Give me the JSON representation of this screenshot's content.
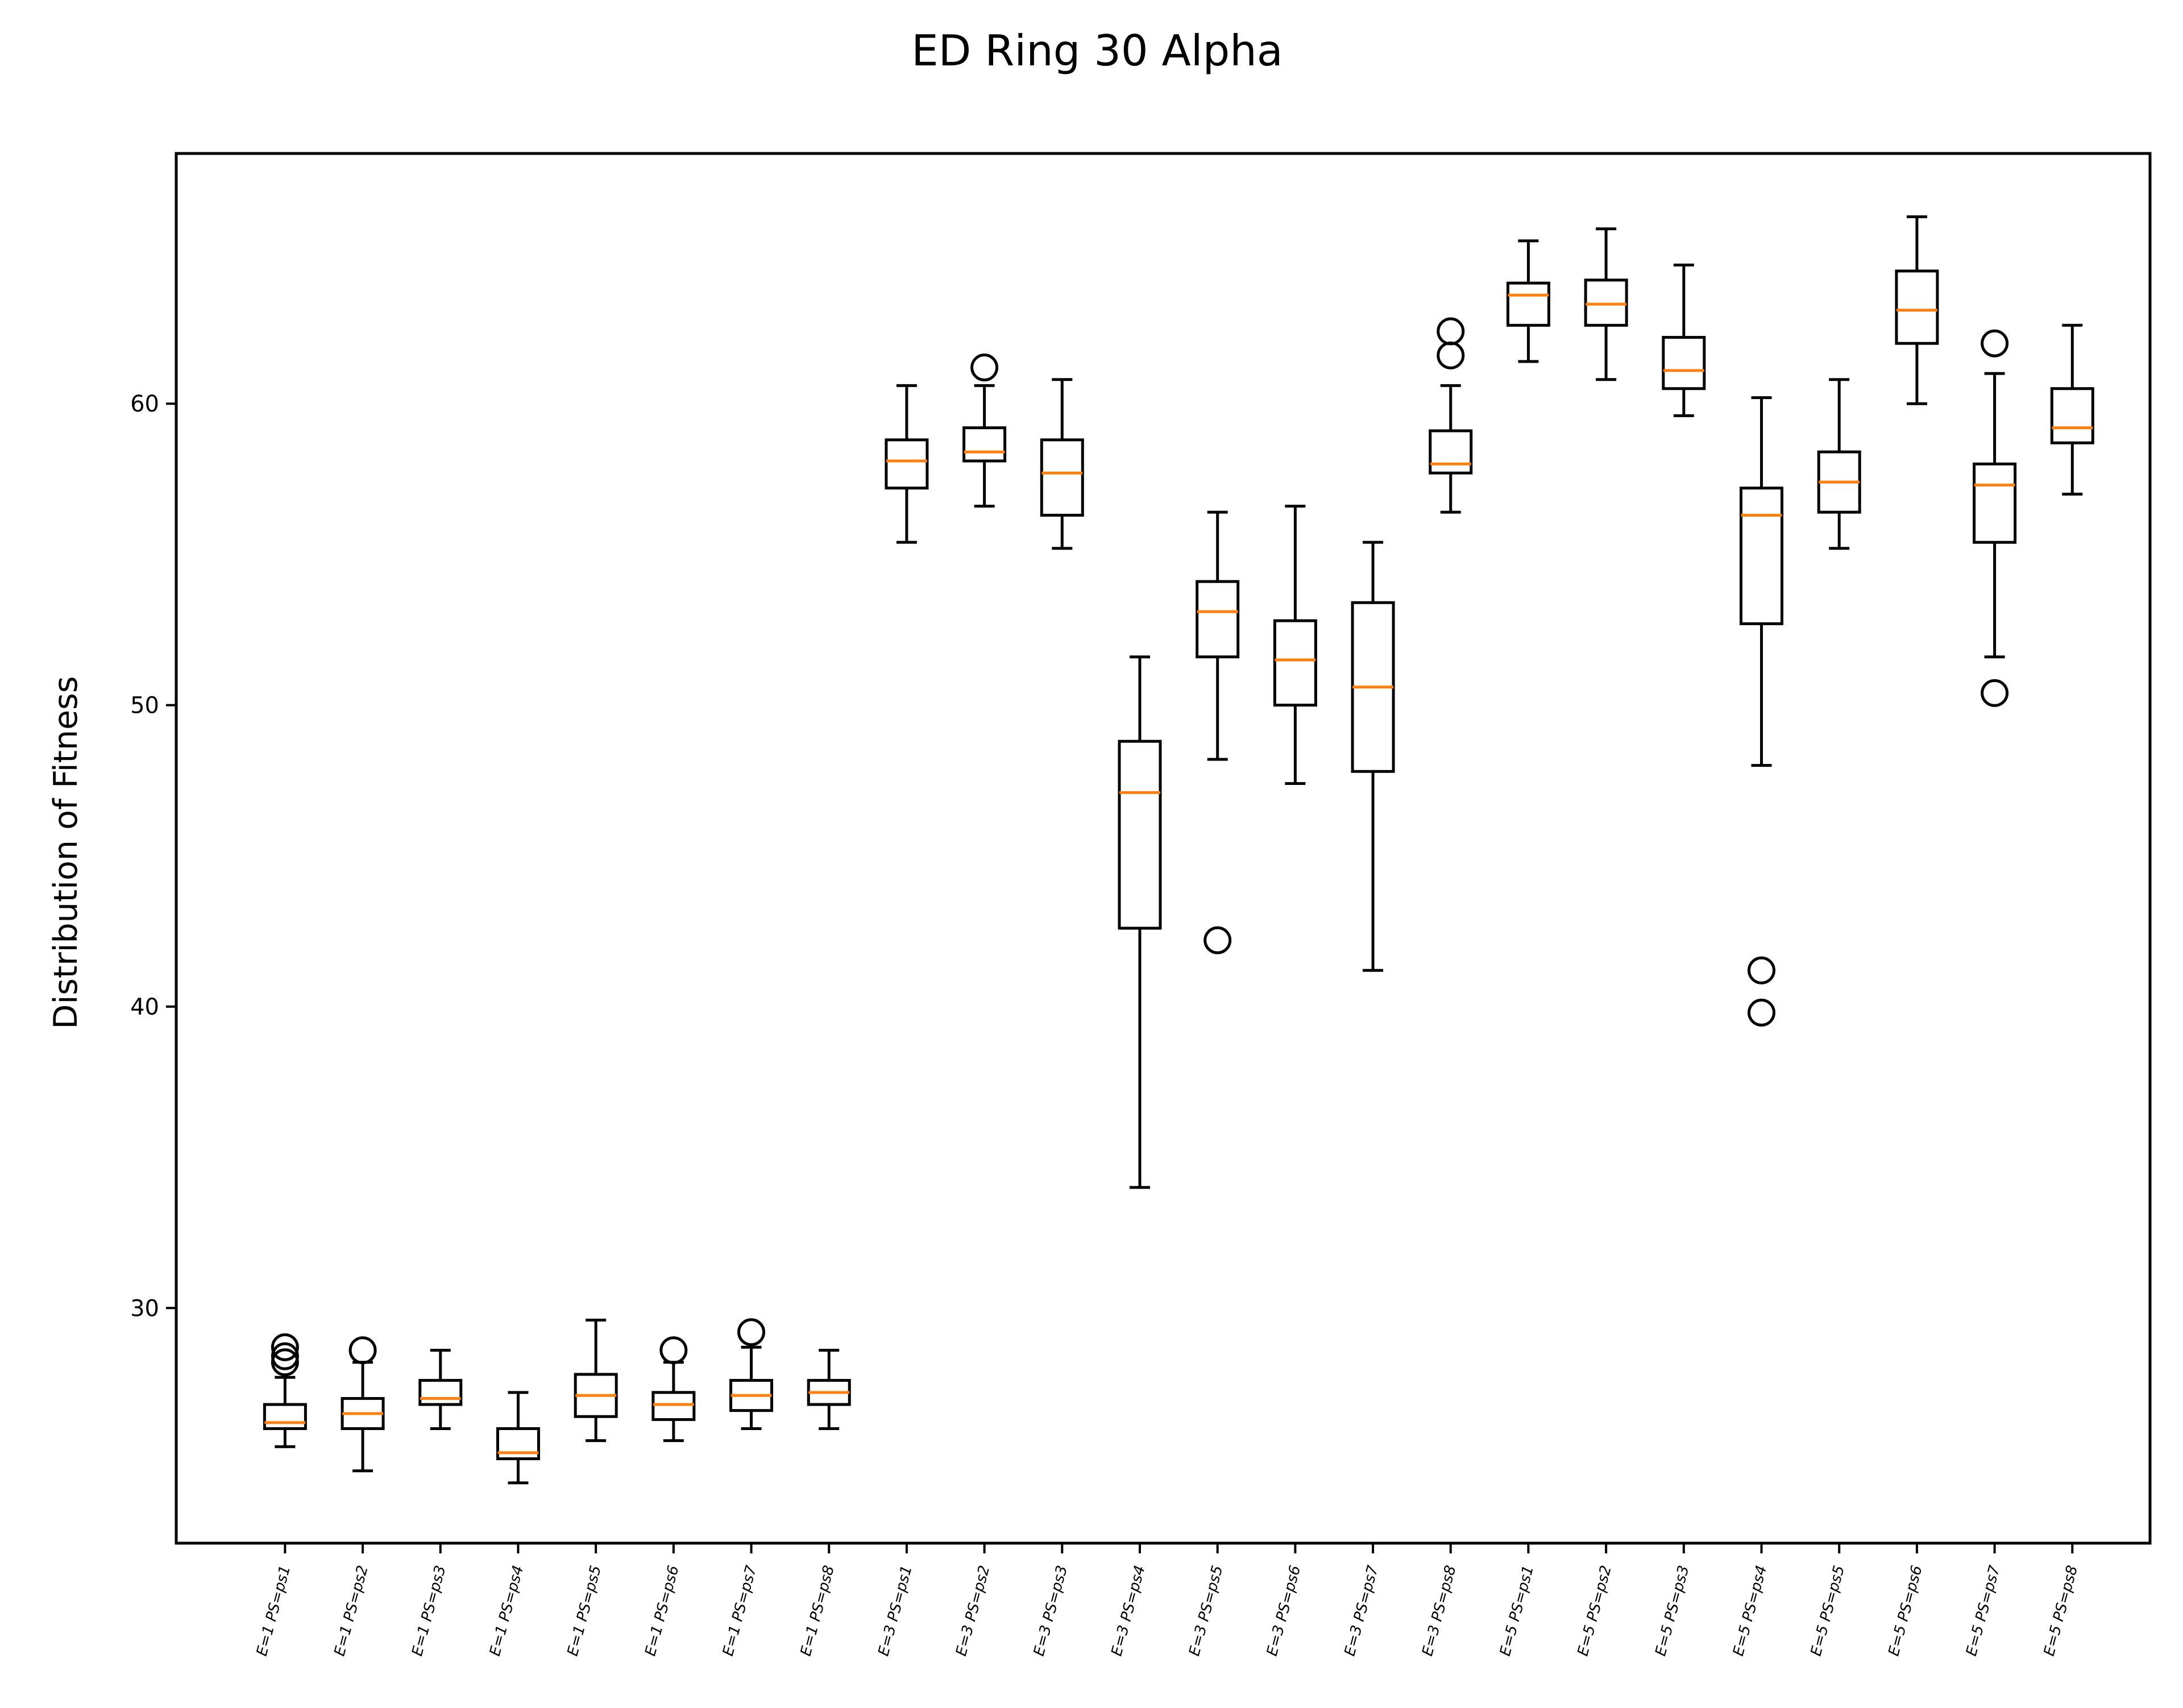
{
  "chart_data": {
    "type": "box",
    "title": "ED Ring 30 Alpha",
    "xlabel": "",
    "ylabel": "Distribution of Fitness",
    "ylim": [
      22.2,
      68.3
    ],
    "yticks": [
      30,
      40,
      50,
      60
    ],
    "grid": false,
    "categories": [
      "E=1 PS=ps1",
      "E=1 PS=ps2",
      "E=1 PS=ps3",
      "E=1 PS=ps4",
      "E=1 PS=ps5",
      "E=1 PS=ps6",
      "E=1 PS=ps7",
      "E=1 PS=ps8",
      "E=3 PS=ps1",
      "E=3 PS=ps2",
      "E=3 PS=ps3",
      "E=3 PS=ps4",
      "E=3 PS=ps5",
      "E=3 PS=ps6",
      "E=3 PS=ps7",
      "E=3 PS=ps8",
      "E=5 PS=ps1",
      "E=5 PS=ps2",
      "E=5 PS=ps3",
      "E=5 PS=ps4",
      "E=5 PS=ps5",
      "E=5 PS=ps6",
      "E=5 PS=ps7",
      "E=5 PS=ps8"
    ],
    "boxes": [
      {
        "whislo": 25.4,
        "q1": 26.0,
        "med": 26.2,
        "q3": 26.8,
        "whishi": 27.7,
        "fliers": [
          28.2,
          28.4,
          28.7
        ]
      },
      {
        "whislo": 24.6,
        "q1": 26.0,
        "med": 26.5,
        "q3": 27.0,
        "whishi": 28.2,
        "fliers": [
          28.6
        ]
      },
      {
        "whislo": 26.0,
        "q1": 26.8,
        "med": 27.0,
        "q3": 27.6,
        "whishi": 28.6,
        "fliers": []
      },
      {
        "whislo": 24.2,
        "q1": 25.0,
        "med": 25.2,
        "q3": 26.0,
        "whishi": 27.2,
        "fliers": []
      },
      {
        "whislo": 25.6,
        "q1": 26.4,
        "med": 27.1,
        "q3": 27.8,
        "whishi": 29.6,
        "fliers": []
      },
      {
        "whislo": 25.6,
        "q1": 26.3,
        "med": 26.8,
        "q3": 27.2,
        "whishi": 28.2,
        "fliers": [
          28.6
        ]
      },
      {
        "whislo": 26.0,
        "q1": 26.6,
        "med": 27.1,
        "q3": 27.6,
        "whishi": 28.7,
        "fliers": [
          29.2
        ]
      },
      {
        "whislo": 26.0,
        "q1": 26.8,
        "med": 27.2,
        "q3": 27.6,
        "whishi": 28.6,
        "fliers": []
      },
      {
        "whislo": 55.4,
        "q1": 57.2,
        "med": 58.1,
        "q3": 58.8,
        "whishi": 60.6,
        "fliers": []
      },
      {
        "whislo": 56.6,
        "q1": 58.1,
        "med": 58.4,
        "q3": 59.2,
        "whishi": 60.6,
        "fliers": [
          61.2
        ]
      },
      {
        "whislo": 55.2,
        "q1": 56.3,
        "med": 57.7,
        "q3": 58.8,
        "whishi": 60.8,
        "fliers": []
      },
      {
        "whislo": 34.0,
        "q1": 42.6,
        "med": 47.1,
        "q3": 48.8,
        "whishi": 51.6,
        "fliers": []
      },
      {
        "whislo": 48.2,
        "q1": 51.6,
        "med": 53.1,
        "q3": 54.1,
        "whishi": 56.4,
        "fliers": [
          42.2
        ]
      },
      {
        "whislo": 47.4,
        "q1": 50.0,
        "med": 51.5,
        "q3": 52.8,
        "whishi": 56.6,
        "fliers": []
      },
      {
        "whislo": 41.2,
        "q1": 47.8,
        "med": 50.6,
        "q3": 53.4,
        "whishi": 55.4,
        "fliers": []
      },
      {
        "whislo": 56.4,
        "q1": 57.7,
        "med": 58.0,
        "q3": 59.1,
        "whishi": 60.6,
        "fliers": [
          61.6,
          62.4
        ]
      },
      {
        "whislo": 61.4,
        "q1": 62.6,
        "med": 63.6,
        "q3": 64.0,
        "whishi": 65.4,
        "fliers": []
      },
      {
        "whislo": 60.8,
        "q1": 62.6,
        "med": 63.3,
        "q3": 64.1,
        "whishi": 65.8,
        "fliers": []
      },
      {
        "whislo": 59.6,
        "q1": 60.5,
        "med": 61.1,
        "q3": 62.2,
        "whishi": 64.6,
        "fliers": []
      },
      {
        "whislo": 48.0,
        "q1": 52.7,
        "med": 56.3,
        "q3": 57.2,
        "whishi": 60.2,
        "fliers": [
          41.2,
          39.8
        ]
      },
      {
        "whislo": 55.2,
        "q1": 56.4,
        "med": 57.4,
        "q3": 58.4,
        "whishi": 60.8,
        "fliers": []
      },
      {
        "whislo": 60.0,
        "q1": 62.0,
        "med": 63.1,
        "q3": 64.4,
        "whishi": 66.2,
        "fliers": []
      },
      {
        "whislo": 51.6,
        "q1": 55.4,
        "med": 57.3,
        "q3": 58.0,
        "whishi": 61.0,
        "fliers": [
          62.0,
          50.4
        ]
      },
      {
        "whislo": 57.0,
        "q1": 58.7,
        "med": 59.2,
        "q3": 60.5,
        "whishi": 62.6,
        "fliers": []
      }
    ],
    "colors": {
      "box": "#000000",
      "median": "#ff7f0e",
      "flier": "#000000"
    }
  }
}
